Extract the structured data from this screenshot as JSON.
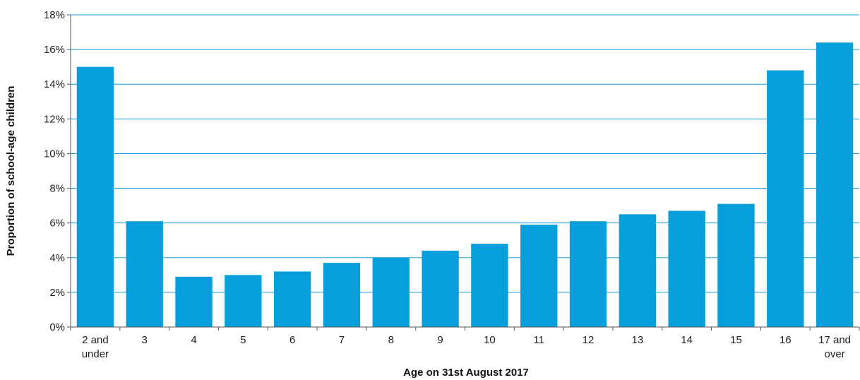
{
  "chart_data": {
    "type": "bar",
    "title": "",
    "xlabel": "Age on 31st August 2017",
    "ylabel": "Proportion of school-age children",
    "categories": [
      [
        "2 and",
        "under"
      ],
      [
        "3"
      ],
      [
        "4"
      ],
      [
        "5"
      ],
      [
        "6"
      ],
      [
        "7"
      ],
      [
        "8"
      ],
      [
        "9"
      ],
      [
        "10"
      ],
      [
        "11"
      ],
      [
        "12"
      ],
      [
        "13"
      ],
      [
        "14"
      ],
      [
        "15"
      ],
      [
        "16"
      ],
      [
        "17 and",
        "over"
      ]
    ],
    "values": [
      15.0,
      6.1,
      2.9,
      3.0,
      3.2,
      3.7,
      4.0,
      4.4,
      4.8,
      5.9,
      6.1,
      6.5,
      6.7,
      7.1,
      14.8,
      16.4
    ],
    "ylim": [
      0,
      18
    ],
    "yticks": [
      0,
      2,
      4,
      6,
      8,
      10,
      12,
      14,
      16,
      18
    ],
    "ytick_labels": [
      "0%",
      "2%",
      "4%",
      "6%",
      "8%",
      "10%",
      "12%",
      "14%",
      "16%",
      "18%"
    ],
    "grid": true,
    "legend": "none",
    "colors": {
      "bar": "#069edb",
      "grid": "#1e9bd7",
      "axis": "#555555"
    }
  }
}
